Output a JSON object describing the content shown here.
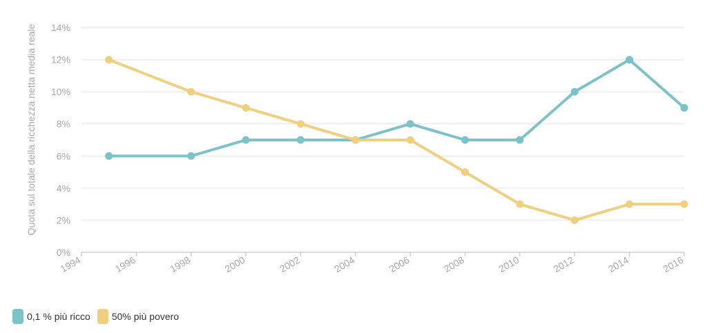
{
  "chart_data": {
    "type": "line",
    "ylabel": "Quota sul totale della ricchezza netta media reale",
    "xlabel": "",
    "x_ticks": [
      "1994",
      "1996",
      "1998",
      "2000",
      "2002",
      "2004",
      "2006",
      "2008",
      "2010",
      "2012",
      "2014",
      "2016"
    ],
    "y_ticks": [
      "0%",
      "2%",
      "4%",
      "6%",
      "8%",
      "10%",
      "12%",
      "14%"
    ],
    "xlim": [
      1994,
      2016
    ],
    "ylim": [
      0,
      14
    ],
    "grid": true,
    "legend_position": "bottom-left",
    "series": [
      {
        "name": "0,1 % più ricco",
        "color": "#7cc3c9",
        "x": [
          1995,
          1998,
          2000,
          2002,
          2004,
          2006,
          2008,
          2010,
          2012,
          2014,
          2016
        ],
        "values": [
          6,
          6,
          7,
          7,
          7,
          8,
          7,
          7,
          10,
          12,
          9
        ]
      },
      {
        "name": "50% più povero",
        "color": "#f0d080",
        "x": [
          1995,
          1998,
          2000,
          2002,
          2004,
          2006,
          2008,
          2010,
          2012,
          2014,
          2016
        ],
        "values": [
          12,
          10,
          9,
          8,
          7,
          7,
          5,
          3,
          2,
          3,
          3
        ]
      }
    ]
  }
}
